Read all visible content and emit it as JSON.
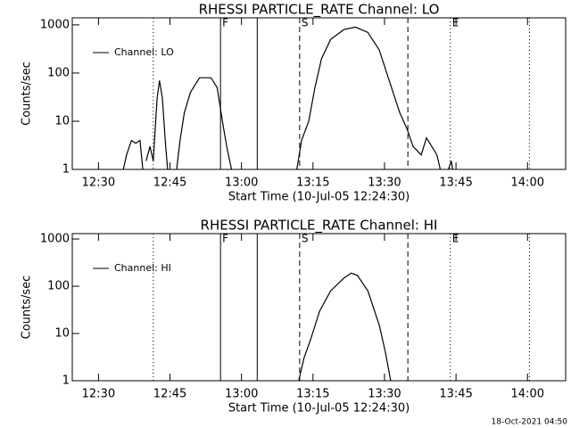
{
  "chart_data": [
    {
      "type": "line",
      "title": "RHESSI PARTICLE_RATE Channel: LO",
      "xlabel": "Start Time (10-Jul-05 12:24:30)",
      "ylabel": "Counts/sec",
      "ylog": true,
      "legend": "upper left",
      "xlim": [
        24.5,
        128
      ],
      "ylim": [
        1,
        1400
      ],
      "xticks": [
        {
          "value": 30,
          "label": "12:30"
        },
        {
          "value": 45,
          "label": "12:45"
        },
        {
          "value": 60,
          "label": "13:00"
        },
        {
          "value": 75,
          "label": "13:15"
        },
        {
          "value": 90,
          "label": "13:30"
        },
        {
          "value": 105,
          "label": "13:45"
        },
        {
          "value": 120,
          "label": "14:00"
        }
      ],
      "yticks": [
        1,
        10,
        100,
        1000
      ],
      "markers": [
        {
          "x": 41.5,
          "style": "dotted"
        },
        {
          "x": 55.6,
          "style": "solid",
          "label": "F"
        },
        {
          "x": 63.3,
          "style": "solid"
        },
        {
          "x": 72.2,
          "style": "dashed",
          "label": "S"
        },
        {
          "x": 94.9,
          "style": "dashed"
        },
        {
          "x": 103.8,
          "style": "dotted",
          "label": "E"
        },
        {
          "x": 120.4,
          "style": "dotted"
        }
      ],
      "x": [
        35.2,
        35.9,
        36.9,
        37.8,
        38.7,
        39.3,
        39.6,
        40.0,
        40.8,
        41.5,
        42.3,
        42.8,
        43.4,
        44.1,
        44.5,
        45.4,
        46.4,
        47.1,
        48.0,
        49.3,
        51.2,
        53.6,
        54.9,
        56.0,
        56.9,
        57.9,
        65.0,
        71.6,
        72.6,
        74.1,
        75.4,
        76.8,
        78.7,
        81.5,
        83.9,
        86.5,
        88.9,
        91.2,
        93.2,
        94.7,
        96.0,
        97.7,
        98.8,
        99.9,
        101.0,
        101.7,
        102.5,
        103.4,
        104.0,
        104.3
      ],
      "series": [
        {
          "name": "Channel: LO",
          "color": "#000000",
          "values": [
            1,
            2,
            4,
            3.5,
            4,
            1,
            null,
            1.5,
            3,
            1.5,
            30,
            70,
            30,
            3,
            1,
            null,
            1,
            4,
            15,
            40,
            80,
            80,
            50,
            10,
            3,
            1,
            null,
            1,
            4,
            10,
            50,
            200,
            500,
            800,
            900,
            700,
            300,
            60,
            15,
            7,
            3,
            2,
            4.5,
            3,
            2,
            1,
            null,
            1,
            1.5,
            1
          ]
        }
      ]
    },
    {
      "type": "line",
      "title": "RHESSI PARTICLE_RATE Channel: HI",
      "xlabel": "Start Time (10-Jul-05 12:24:30)",
      "ylabel": "Counts/sec",
      "ylog": true,
      "legend": "upper left",
      "xlim": [
        24.5,
        128
      ],
      "ylim": [
        1,
        1300
      ],
      "xticks": [
        {
          "value": 30,
          "label": "12:30"
        },
        {
          "value": 45,
          "label": "12:45"
        },
        {
          "value": 60,
          "label": "13:00"
        },
        {
          "value": 75,
          "label": "13:15"
        },
        {
          "value": 90,
          "label": "13:30"
        },
        {
          "value": 105,
          "label": "13:45"
        },
        {
          "value": 120,
          "label": "14:00"
        }
      ],
      "yticks": [
        1,
        10,
        100,
        1000
      ],
      "markers": [
        {
          "x": 41.5,
          "style": "dotted"
        },
        {
          "x": 55.6,
          "style": "solid",
          "label": "F"
        },
        {
          "x": 63.3,
          "style": "solid"
        },
        {
          "x": 72.2,
          "style": "dashed",
          "label": "S"
        },
        {
          "x": 94.9,
          "style": "dashed"
        },
        {
          "x": 103.8,
          "style": "dotted",
          "label": "E"
        },
        {
          "x": 120.4,
          "style": "dotted"
        }
      ],
      "x": [
        72.0,
        73.1,
        74.6,
        76.4,
        78.7,
        81.5,
        83.0,
        84.3,
        86.5,
        88.9,
        90.2,
        91.3
      ],
      "series": [
        {
          "name": "Channel: HI",
          "color": "#000000",
          "values": [
            1,
            3,
            8,
            30,
            80,
            150,
            190,
            170,
            80,
            15,
            4,
            1
          ]
        }
      ]
    }
  ],
  "footer": "18-Oct-2021 04:50"
}
